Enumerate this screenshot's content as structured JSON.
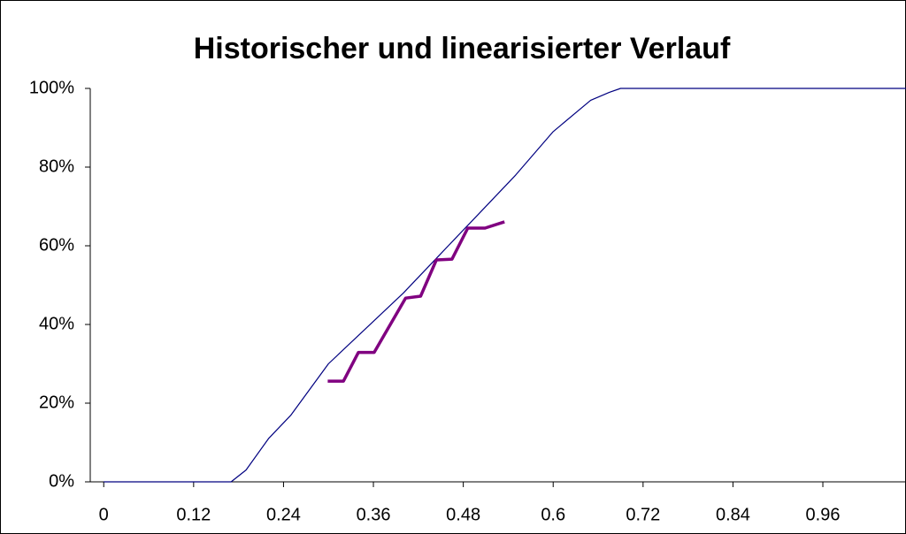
{
  "chart_data": {
    "type": "line",
    "title": "Historischer und linearisierter Verlauf",
    "xlim": [
      -0.018,
      1.071
    ],
    "xticks": [
      0,
      0.12,
      0.24,
      0.36,
      0.48,
      0.6,
      0.72,
      0.84,
      0.96
    ],
    "ylim": [
      0,
      100
    ],
    "yticks": [
      {
        "value": 0,
        "label": "0%"
      },
      {
        "value": 20,
        "label": "20%"
      },
      {
        "value": 40,
        "label": "40%"
      },
      {
        "value": 60,
        "label": "60%"
      },
      {
        "value": 80,
        "label": "80%"
      },
      {
        "value": 100,
        "label": "100%"
      }
    ],
    "grid": false,
    "series": [
      {
        "color": "#000080",
        "width": 1.2,
        "x": [
          0,
          0.17,
          0.19,
          0.22,
          0.25,
          0.3,
          0.35,
          0.4,
          0.45,
          0.5,
          0.55,
          0.6,
          0.65,
          0.675,
          0.69,
          1.071
        ],
        "values": [
          0,
          0,
          3,
          11,
          17,
          30,
          39,
          48,
          58,
          68,
          78,
          89,
          97,
          99,
          100,
          100
        ]
      },
      {
        "color": "#800080",
        "width": 3.5,
        "x": [
          0.299,
          0.32,
          0.34,
          0.361,
          0.403,
          0.423,
          0.444,
          0.465,
          0.486,
          0.509,
          0.535
        ],
        "values": [
          25.6,
          25.6,
          32.9,
          32.9,
          46.7,
          47.2,
          56.4,
          56.6,
          64.5,
          64.5,
          66.1
        ]
      }
    ]
  }
}
